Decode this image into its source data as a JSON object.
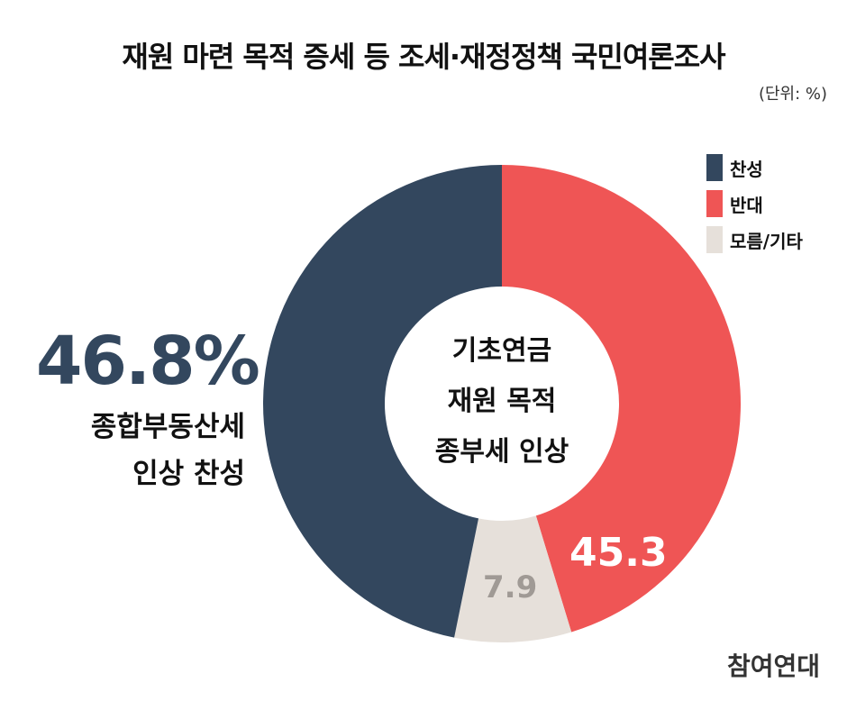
{
  "title": "재원 마련 목적 증세 등 조세·재정정책 국민여론조사",
  "unit": "(단위: %)",
  "center_text": [
    "기초연금",
    "재원 목적",
    "종부세 인상"
  ],
  "highlight": {
    "value": "46.8%",
    "desc": [
      "종합부동산세",
      "인상 찬성"
    ]
  },
  "logo": "참여연대",
  "chart_data": {
    "type": "pie",
    "donut": true,
    "start": "top, clockwise",
    "series": [
      {
        "name": "반대",
        "value": 45.3,
        "label": "45.3",
        "color": "#ef5555"
      },
      {
        "name": "모름/기타",
        "value": 7.9,
        "label": "7.9",
        "color": "#e6e0da"
      },
      {
        "name": "찬성",
        "value": 46.8,
        "label": "",
        "color": "#33475e"
      }
    ],
    "legend": [
      {
        "name": "찬성",
        "color": "#33475e"
      },
      {
        "name": "반대",
        "color": "#ef5555"
      },
      {
        "name": "모름/기타",
        "color": "#e6e0da"
      }
    ],
    "legend_position": "top-right"
  }
}
